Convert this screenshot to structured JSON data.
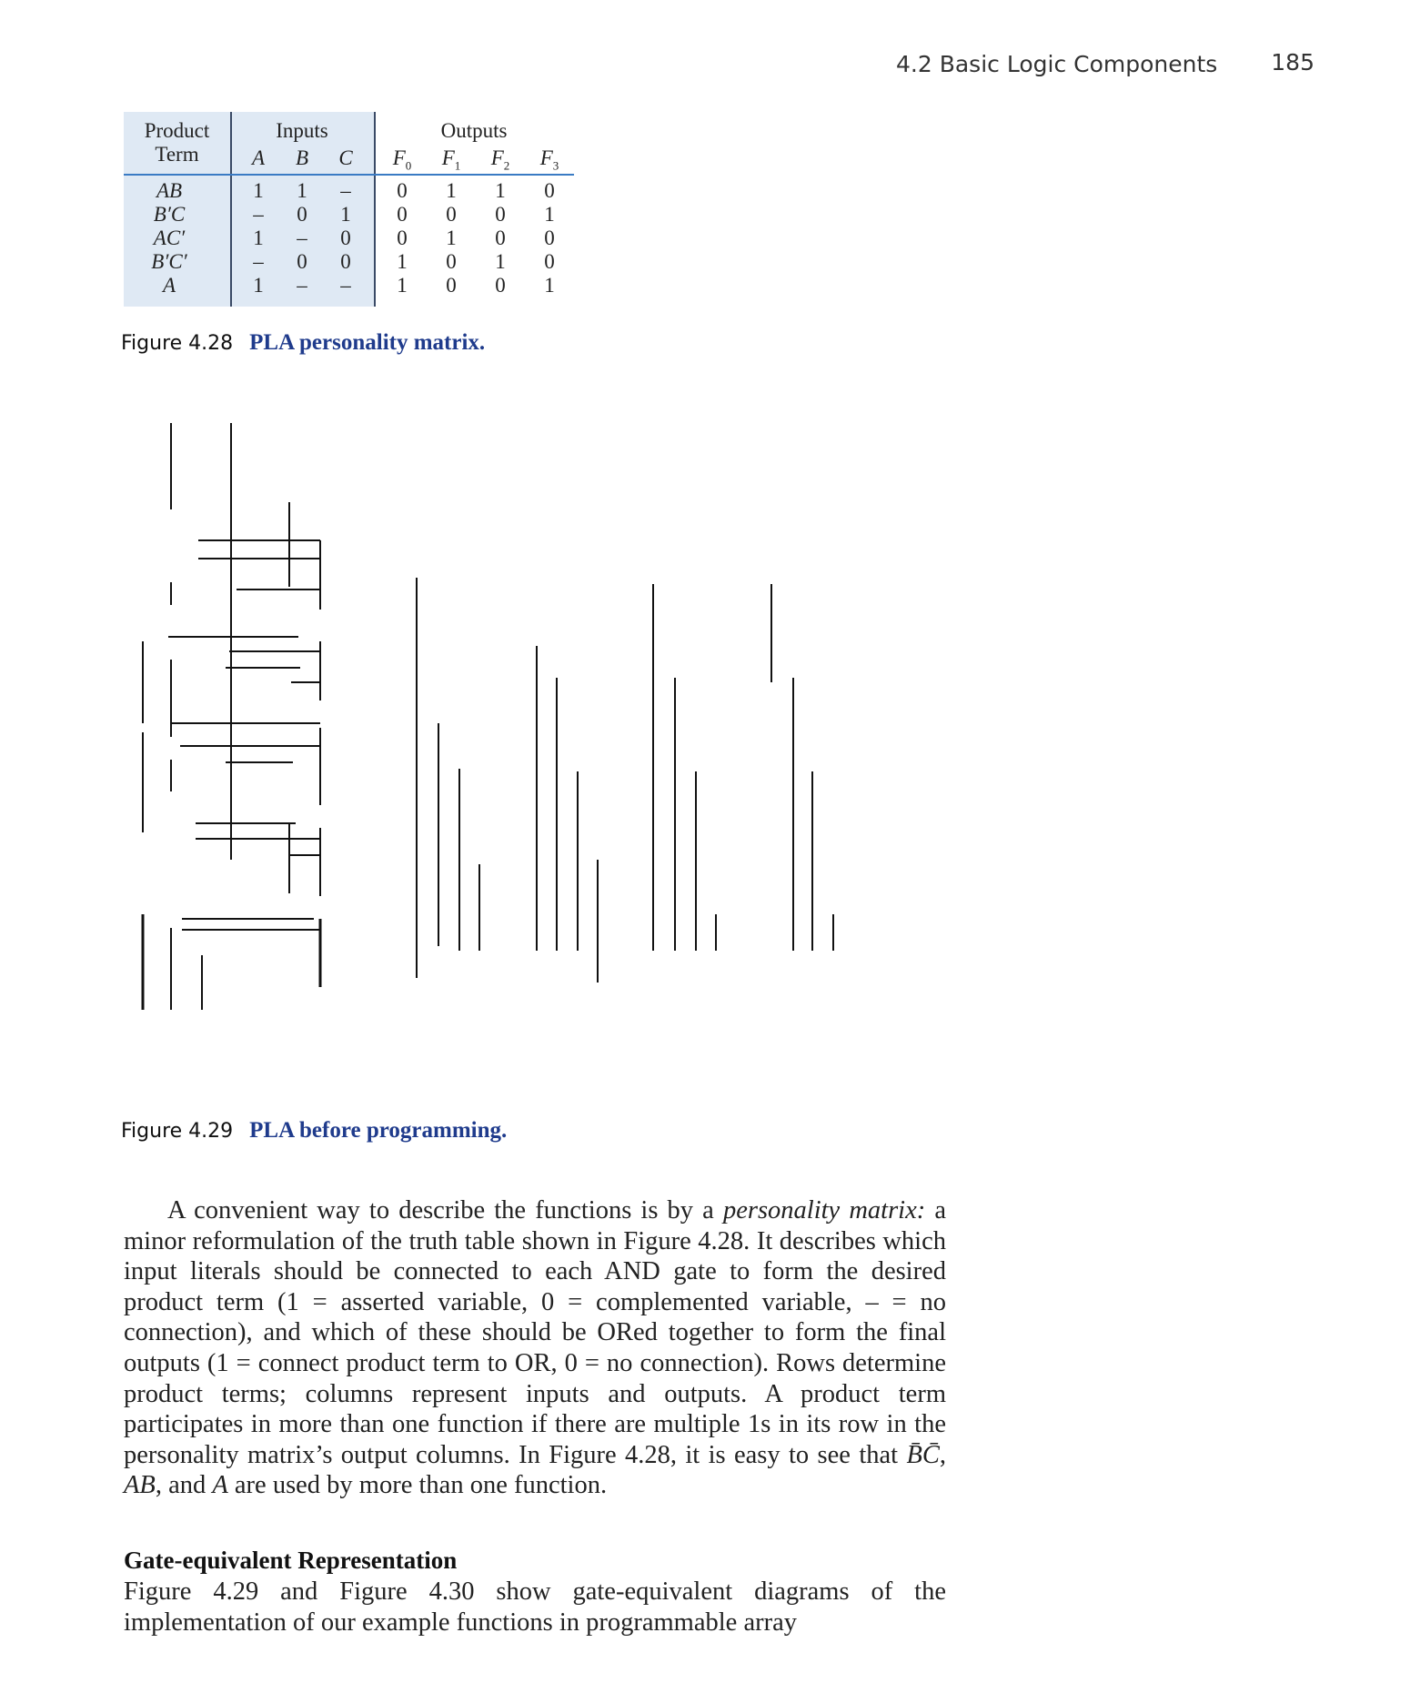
{
  "header": {
    "section": "4.2   Basic Logic Components",
    "page": "185"
  },
  "table": {
    "head_left_1": "Product",
    "head_left_2": "Term",
    "inputs_label": "Inputs",
    "outputs_label": "Outputs",
    "input_cols": [
      "A",
      "B",
      "C"
    ],
    "output_cols": [
      "F",
      "F",
      "F",
      "F"
    ],
    "output_subs": [
      "0",
      "1",
      "2",
      "3"
    ],
    "rows": [
      {
        "term": "AB",
        "cells": [
          "1",
          "1",
          "–",
          "0",
          "1",
          "1",
          "0"
        ]
      },
      {
        "term": "B′C",
        "cells": [
          "–",
          "0",
          "1",
          "0",
          "0",
          "0",
          "1"
        ]
      },
      {
        "term": "AC′",
        "cells": [
          "1",
          "–",
          "0",
          "0",
          "1",
          "0",
          "0"
        ]
      },
      {
        "term": "B′C′",
        "cells": [
          "–",
          "0",
          "0",
          "1",
          "0",
          "1",
          "0"
        ]
      },
      {
        "term": "A",
        "cells": [
          "1",
          "–",
          "–",
          "1",
          "0",
          "0",
          "1"
        ]
      }
    ]
  },
  "fig28": {
    "num": "Figure 4.28",
    "title": "PLA personality matrix."
  },
  "fig29": {
    "num": "Figure 4.29",
    "title": "PLA before programming."
  },
  "para1": {
    "t1": "A convenient way to describe the functions is by a ",
    "em1": "personality matrix:",
    "t2": " a minor reformulation of the truth table shown in Figure 4.28. It describes which input literals should be connected to each AND gate to form the desired product term (1 = asserted variable, 0 = complemented variable, – = no connection), and which of these should be ORed together to form the final outputs (1 = connect product term to OR, 0 = no connection). Rows determine product terms; columns represent inputs and outputs. A product term participates in more than one function if there are multiple 1s in its row in the personality matrix’s output columns. In Figure 4.28, it is easy to see that ",
    "m1": "B̄C̄",
    "t3": ", ",
    "m2": "AB",
    "t4": ", and ",
    "m3": "A",
    "t5": " are used by more than one function."
  },
  "section_heading": "Gate-equivalent Representation",
  "para2": "Figure 4.29 and Figure 4.30 show gate-equivalent diagrams of the implementation of our example functions in programmable array"
}
